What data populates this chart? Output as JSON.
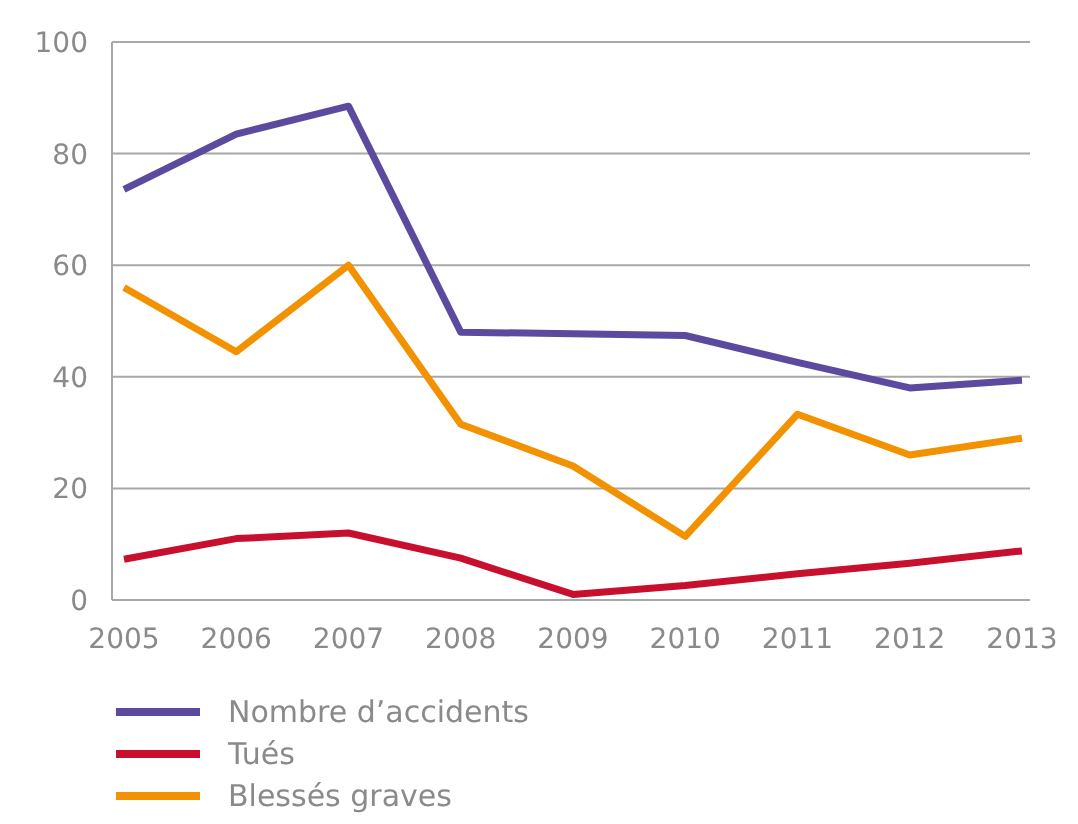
{
  "chart_data": {
    "type": "line",
    "categories": [
      "2005",
      "2006",
      "2007",
      "2008",
      "2009",
      "2010",
      "2011",
      "2012",
      "2013"
    ],
    "series": [
      {
        "name": "Nombre d’accidents",
        "color": "#5b4a9e",
        "values": [
          73.6,
          83.5,
          88.5,
          48,
          47.7,
          47.4,
          42.6,
          38,
          39.4
        ]
      },
      {
        "name": "Tués",
        "color": "#c8102e",
        "values": [
          7.3,
          11,
          12,
          7.5,
          1,
          2.6,
          4.7,
          6.6,
          8.8
        ]
      },
      {
        "name": "Blessés graves",
        "color": "#f39200",
        "values": [
          56,
          44.5,
          60,
          31.5,
          24,
          11.4,
          33.3,
          26,
          29
        ]
      }
    ],
    "ylim": [
      0,
      100
    ],
    "yticks": [
      0,
      20,
      40,
      60,
      80,
      100
    ],
    "grid": "y",
    "legend": "bottom left",
    "marker": "none",
    "line_style": "solid"
  }
}
